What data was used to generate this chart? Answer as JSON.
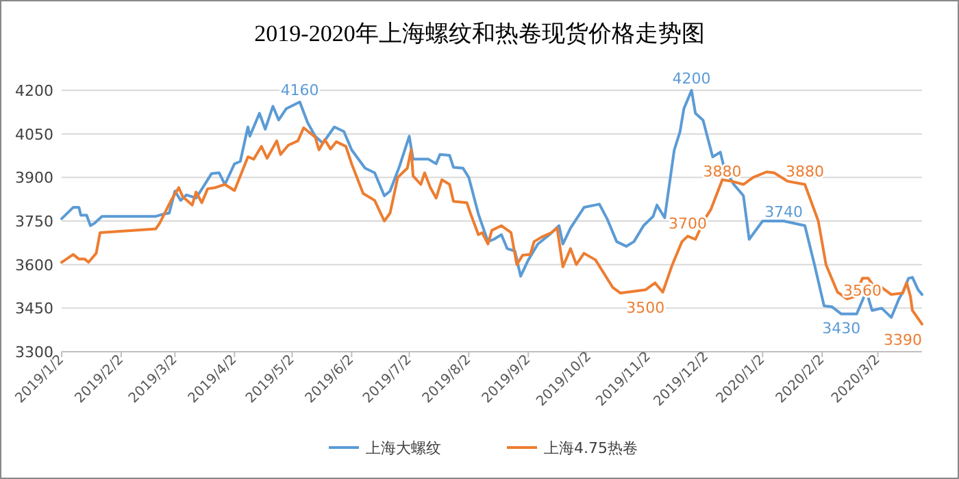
{
  "chart_data": {
    "type": "line",
    "title": "2019-2020年上海螺纹和热卷现货价格走势图",
    "xlim": [
      "2019-01-02",
      "2020-03-25"
    ],
    "ylim": [
      3300,
      4200
    ],
    "yticks": [
      3300,
      3450,
      3600,
      3750,
      3900,
      4050,
      4200
    ],
    "xticks": [
      {
        "value": "2019-01-02",
        "label": "2019/1/2"
      },
      {
        "value": "2019-02-02",
        "label": "2019/2/2"
      },
      {
        "value": "2019-03-02",
        "label": "2019/3/2"
      },
      {
        "value": "2019-04-02",
        "label": "2019/4/2"
      },
      {
        "value": "2019-05-02",
        "label": "2019/5/2"
      },
      {
        "value": "2019-06-02",
        "label": "2019/6/2"
      },
      {
        "value": "2019-07-02",
        "label": "2019/7/2"
      },
      {
        "value": "2019-08-02",
        "label": "2019/8/2"
      },
      {
        "value": "2019-09-02",
        "label": "2019/9/2"
      },
      {
        "value": "2019-10-02",
        "label": "2019/10/2"
      },
      {
        "value": "2019-11-02",
        "label": "2019/11/2"
      },
      {
        "value": "2019-12-02",
        "label": "2019/12/2"
      },
      {
        "value": "2020-01-02",
        "label": "2020/1/2"
      },
      {
        "value": "2020-02-02",
        "label": "2020/2/2"
      },
      {
        "value": "2020-03-02",
        "label": "2020/3/2"
      }
    ],
    "grid": "y",
    "legend": "bottom",
    "line_style": "solid",
    "marker": "none",
    "series": [
      {
        "name": "上海大螺纹",
        "color": "#5b9bd5",
        "x": [
          "2019-01-02",
          "2019-01-08",
          "2019-01-11",
          "2019-01-12",
          "2019-01-15",
          "2019-01-17",
          "2019-01-19",
          "2019-01-23",
          "2019-02-20",
          "2019-02-24",
          "2019-02-27",
          "2019-03-02",
          "2019-03-05",
          "2019-03-08",
          "2019-03-13",
          "2019-03-16",
          "2019-03-21",
          "2019-03-25",
          "2019-03-28",
          "2019-04-02",
          "2019-04-05",
          "2019-04-09",
          "2019-04-10",
          "2019-04-15",
          "2019-04-18",
          "2019-04-22",
          "2019-04-25",
          "2019-04-29",
          "2019-05-06",
          "2019-05-10",
          "2019-05-14",
          "2019-05-18",
          "2019-05-24",
          "2019-05-29",
          "2019-06-02",
          "2019-06-09",
          "2019-06-14",
          "2019-06-19",
          "2019-06-22",
          "2019-06-27",
          "2019-07-02",
          "2019-07-04",
          "2019-07-12",
          "2019-07-16",
          "2019-07-18",
          "2019-07-23",
          "2019-07-25",
          "2019-07-30",
          "2019-08-02",
          "2019-08-07",
          "2019-08-12",
          "2019-08-15",
          "2019-08-19",
          "2019-08-22",
          "2019-08-26",
          "2019-08-29",
          "2019-09-02",
          "2019-09-07",
          "2019-09-13",
          "2019-09-18",
          "2019-09-20",
          "2019-09-24",
          "2019-10-01",
          "2019-10-09",
          "2019-10-13",
          "2019-10-18",
          "2019-10-23",
          "2019-10-27",
          "2019-11-01",
          "2019-11-06",
          "2019-11-08",
          "2019-11-12",
          "2019-11-17",
          "2019-11-20",
          "2019-11-22",
          "2019-11-24",
          "2019-11-26",
          "2019-11-28",
          "2019-12-02",
          "2019-12-07",
          "2019-12-11",
          "2019-12-13",
          "2019-12-18",
          "2019-12-23",
          "2019-12-26",
          "2020-01-02",
          "2020-01-13",
          "2020-01-24",
          "2020-01-29",
          "2020-02-03",
          "2020-02-07",
          "2020-02-12",
          "2020-02-20",
          "2020-02-25",
          "2020-02-28",
          "2020-03-04",
          "2020-03-09",
          "2020-03-13",
          "2020-03-15",
          "2020-03-18",
          "2020-03-20",
          "2020-03-23",
          "2020-03-25"
        ],
        "values": [
          3758,
          3797,
          3797,
          3770,
          3770,
          3734,
          3742,
          3766,
          3766,
          3774,
          3777,
          3853,
          3821,
          3840,
          3829,
          3860,
          3913,
          3916,
          3876,
          3947,
          3955,
          4074,
          4042,
          4121,
          4066,
          4145,
          4098,
          4137,
          4160,
          4090,
          4042,
          4018,
          4074,
          4058,
          3995,
          3932,
          3916,
          3837,
          3853,
          3940,
          4042,
          3963,
          3963,
          3947,
          3979,
          3976,
          3935,
          3932,
          3900,
          3774,
          3679,
          3687,
          3703,
          3655,
          3647,
          3560,
          3616,
          3671,
          3703,
          3734,
          3671,
          3726,
          3797,
          3808,
          3758,
          3679,
          3663,
          3679,
          3734,
          3766,
          3805,
          3761,
          3995,
          4058,
          4137,
          4168,
          4200,
          4121,
          4097,
          3971,
          3987,
          3932,
          3876,
          3837,
          3687,
          3750,
          3750,
          3734,
          3600,
          3458,
          3455,
          3430,
          3430,
          3508,
          3442,
          3450,
          3418,
          3482,
          3505,
          3553,
          3556,
          3513,
          3497
        ]
      },
      {
        "name": "上海4.75热卷",
        "color": "#ed7d31",
        "x": [
          "2019-01-02",
          "2019-01-08",
          "2019-01-11",
          "2019-01-14",
          "2019-01-16",
          "2019-01-20",
          "2019-01-22",
          "2019-02-20",
          "2019-02-22",
          "2019-02-28",
          "2019-03-04",
          "2019-03-06",
          "2019-03-11",
          "2019-03-13",
          "2019-03-16",
          "2019-03-19",
          "2019-03-23",
          "2019-03-28",
          "2019-04-02",
          "2019-04-09",
          "2019-04-12",
          "2019-04-16",
          "2019-04-19",
          "2019-04-24",
          "2019-04-26",
          "2019-04-30",
          "2019-05-05",
          "2019-05-08",
          "2019-05-14",
          "2019-05-16",
          "2019-05-19",
          "2019-05-22",
          "2019-05-25",
          "2019-05-30",
          "2019-06-02",
          "2019-06-08",
          "2019-06-14",
          "2019-06-19",
          "2019-06-22",
          "2019-06-26",
          "2019-07-01",
          "2019-07-03",
          "2019-07-04",
          "2019-07-08",
          "2019-07-10",
          "2019-07-13",
          "2019-07-16",
          "2019-07-19",
          "2019-07-23",
          "2019-07-25",
          "2019-08-01",
          "2019-08-03",
          "2019-08-07",
          "2019-08-09",
          "2019-08-12",
          "2019-08-14",
          "2019-08-19",
          "2019-08-24",
          "2019-08-27",
          "2019-08-30",
          "2019-09-03",
          "2019-09-05",
          "2019-09-09",
          "2019-09-14",
          "2019-09-17",
          "2019-09-20",
          "2019-09-24",
          "2019-09-27",
          "2019-10-01",
          "2019-10-07",
          "2019-10-16",
          "2019-10-20",
          "2019-11-02",
          "2019-11-07",
          "2019-11-11",
          "2019-11-16",
          "2019-11-21",
          "2019-11-24",
          "2019-11-28",
          "2019-12-03",
          "2019-12-06",
          "2019-12-12",
          "2019-12-17",
          "2019-12-23",
          "2019-12-28",
          "2020-01-04",
          "2020-01-08",
          "2020-01-15",
          "2020-01-24",
          "2020-01-31",
          "2020-02-04",
          "2020-02-10",
          "2020-02-15",
          "2020-02-19",
          "2020-02-23",
          "2020-02-26",
          "2020-03-02",
          "2020-03-04",
          "2020-03-09",
          "2020-03-15",
          "2020-03-17",
          "2020-03-19",
          "2020-03-20",
          "2020-03-25"
        ],
        "values": [
          3608,
          3635,
          3619,
          3619,
          3608,
          3639,
          3710,
          3723,
          3742,
          3821,
          3865,
          3834,
          3805,
          3850,
          3813,
          3861,
          3865,
          3876,
          3855,
          3971,
          3963,
          4007,
          3966,
          4026,
          3979,
          4011,
          4026,
          4071,
          4039,
          3995,
          4030,
          3998,
          4023,
          4007,
          3947,
          3845,
          3821,
          3750,
          3777,
          3900,
          3932,
          3995,
          3905,
          3876,
          3916,
          3865,
          3829,
          3892,
          3876,
          3818,
          3813,
          3774,
          3703,
          3710,
          3671,
          3718,
          3734,
          3710,
          3600,
          3632,
          3635,
          3679,
          3695,
          3710,
          3726,
          3592,
          3655,
          3600,
          3639,
          3616,
          3521,
          3502,
          3513,
          3537,
          3505,
          3600,
          3679,
          3698,
          3687,
          3758,
          3789,
          3892,
          3887,
          3876,
          3900,
          3919,
          3916,
          3887,
          3876,
          3750,
          3600,
          3505,
          3482,
          3490,
          3553,
          3553,
          3505,
          3521,
          3497,
          3502,
          3537,
          3490,
          3442,
          3395
        ]
      }
    ],
    "annotations": [
      {
        "text": "4160",
        "x": "2019-05-06",
        "y": 4160
      },
      {
        "text": "4200",
        "x": "2019-11-26",
        "y": 4200
      },
      {
        "text": "3500",
        "x": "2019-11-02",
        "y": 3500
      },
      {
        "text": "3700",
        "x": "2019-11-24",
        "y": 3700
      },
      {
        "text": "3880",
        "x": "2019-12-12",
        "y": 3880
      },
      {
        "text": "3880",
        "x": "2020-01-24",
        "y": 3880
      },
      {
        "text": "3740",
        "x": "2020-01-13",
        "y": 3740
      },
      {
        "text": "3430",
        "x": "2020-02-12",
        "y": 3430
      },
      {
        "text": "3560",
        "x": "2020-02-23",
        "y": 3560
      },
      {
        "text": "3390",
        "x": "2020-03-25",
        "y": 3390
      }
    ]
  }
}
